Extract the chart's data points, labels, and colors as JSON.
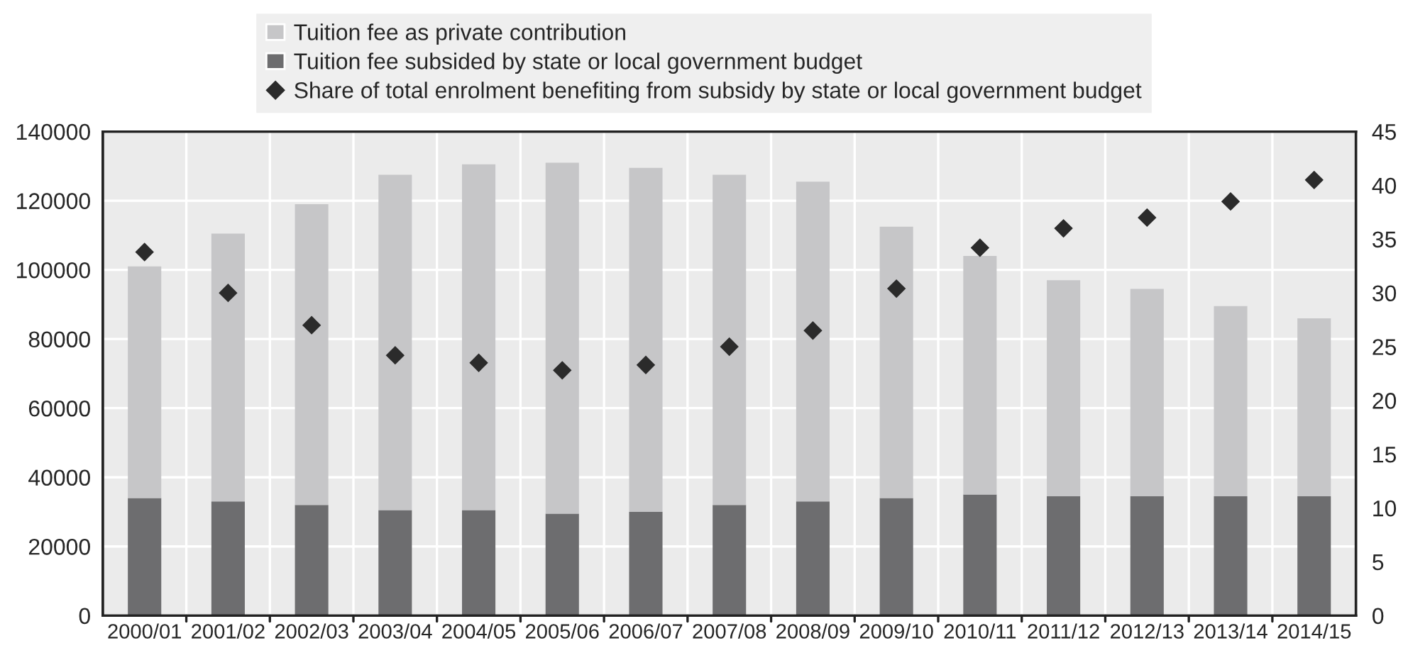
{
  "chart_data": {
    "type": "bar",
    "stacked": true,
    "categories": [
      "2000/01",
      "2001/02",
      "2002/03",
      "2003/04",
      "2004/05",
      "2005/06",
      "2006/07",
      "2007/08",
      "2008/09",
      "2009/10",
      "2010/11",
      "2011/12",
      "2012/13",
      "2013/14",
      "2014/15"
    ],
    "series": [
      {
        "name": "Tuition fee subsided by state or local government budget",
        "color": "#6d6d6f",
        "values": [
          34000,
          33000,
          32000,
          30500,
          30500,
          29500,
          30000,
          32000,
          33000,
          34000,
          35000,
          34500,
          34500,
          34500,
          34500
        ]
      },
      {
        "name": "Tuition fee as private contribution",
        "color": "#c6c6c8",
        "values": [
          67000,
          77500,
          87000,
          97000,
          100000,
          101500,
          99500,
          95500,
          92500,
          78500,
          69000,
          62500,
          60000,
          55000,
          51500
        ]
      },
      {
        "name": "Share of total enrolment benefiting from subsidy by state or local government budget",
        "type": "scatter",
        "axis": "y2",
        "marker": "diamond",
        "color": "#2b2b2b",
        "values": [
          33.8,
          30,
          27,
          24.2,
          23.5,
          22.8,
          23.3,
          25,
          26.5,
          30.4,
          34.2,
          36,
          37,
          38.5,
          40.5
        ]
      }
    ],
    "ylim": [
      0,
      140000
    ],
    "yticks": [
      0,
      20000,
      40000,
      60000,
      80000,
      100000,
      120000,
      140000
    ],
    "y2lim": [
      0,
      45
    ],
    "y2ticks": [
      0,
      5,
      10,
      15,
      20,
      25,
      30,
      35,
      40,
      45
    ],
    "grid": true,
    "legend": "top"
  }
}
